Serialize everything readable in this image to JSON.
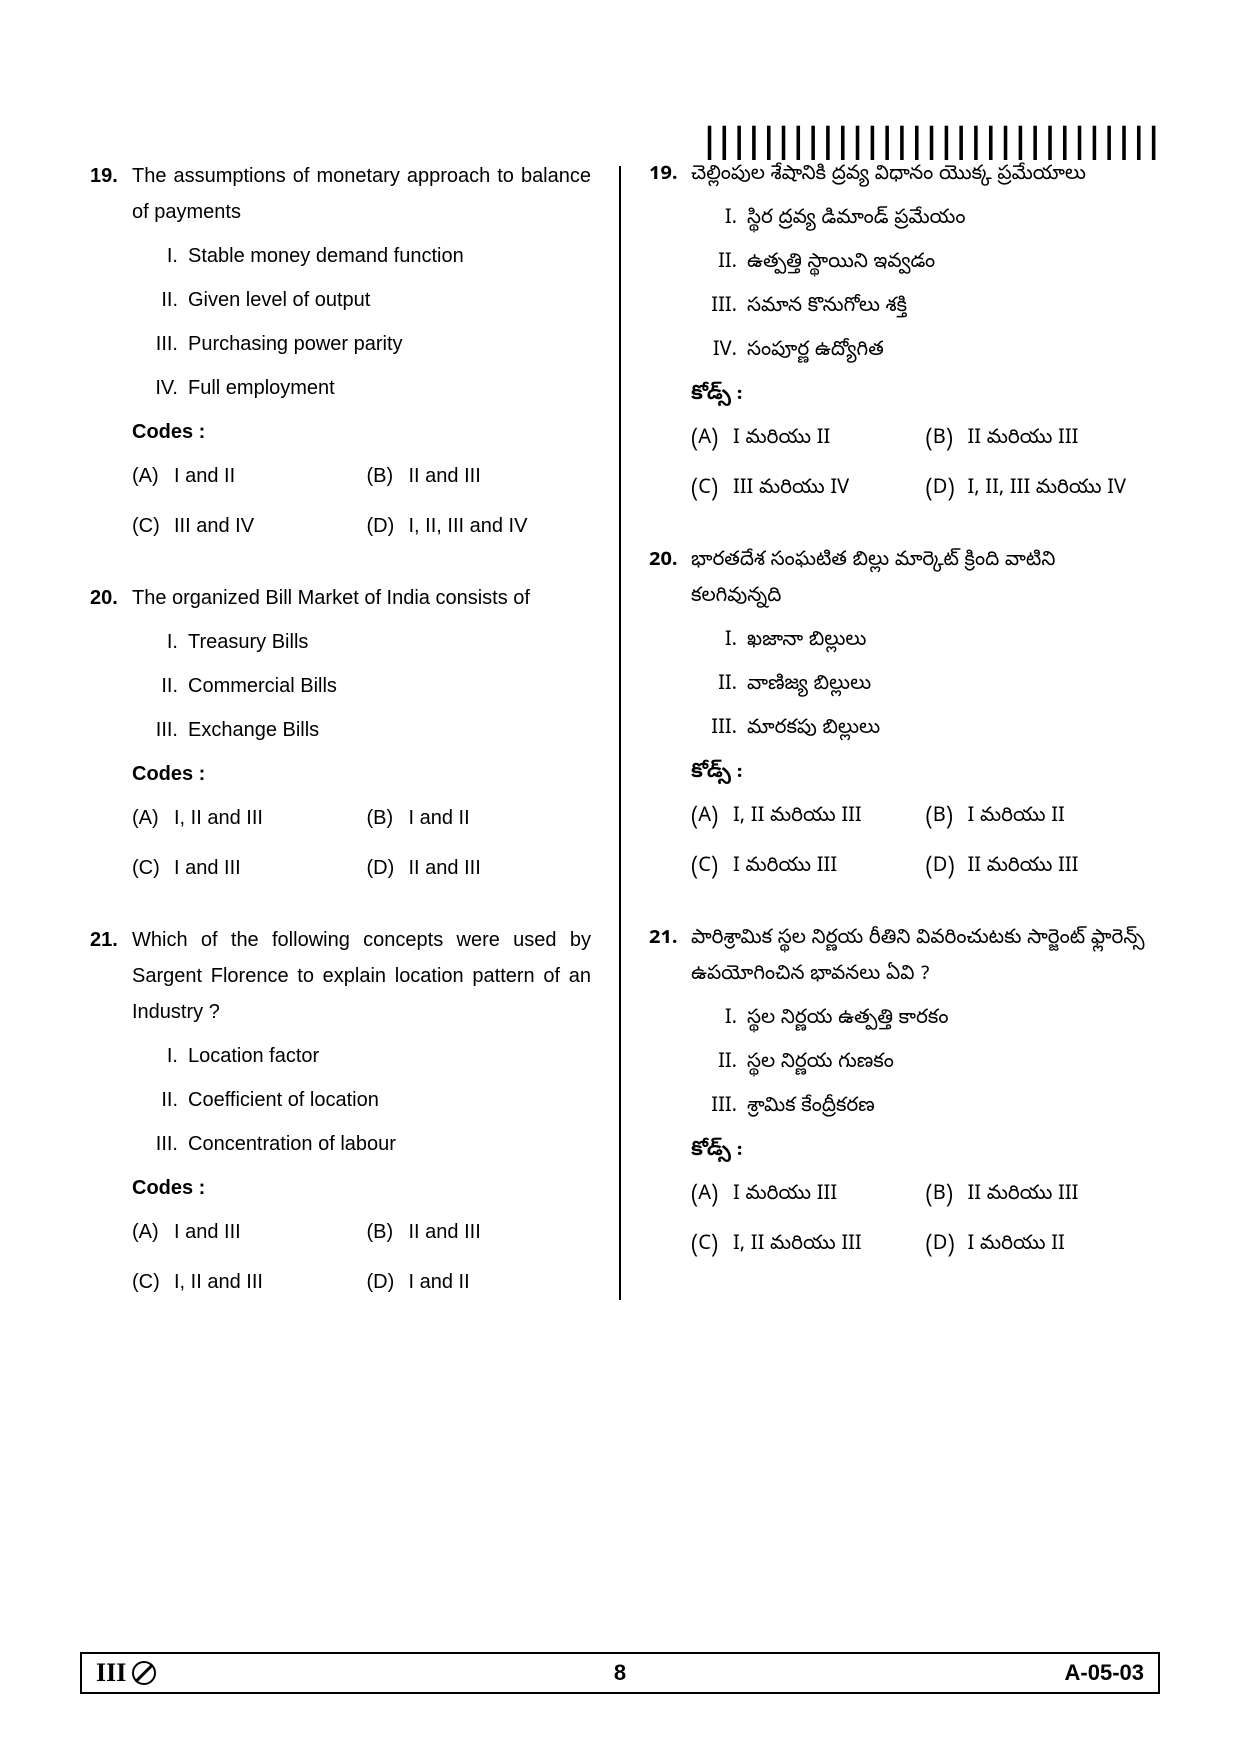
{
  "barcode_text": "|||||||||||||||||||||||||||||||",
  "footer": {
    "left_roman": "III",
    "page_num": "8",
    "code": "A-05-03"
  },
  "left": {
    "q19": {
      "num": "19.",
      "stem": "The assumptions of monetary approach to balance of payments",
      "items": [
        {
          "n": "I.",
          "t": "Stable money demand function"
        },
        {
          "n": "II.",
          "t": "Given level of output"
        },
        {
          "n": "III.",
          "t": "Purchasing power parity"
        },
        {
          "n": "IV.",
          "t": "Full employment"
        }
      ],
      "codes": "Codes :",
      "opts": [
        {
          "l": "(A)",
          "t": "I and II"
        },
        {
          "l": "(B)",
          "t": "II and III"
        },
        {
          "l": "(C)",
          "t": "III and IV"
        },
        {
          "l": "(D)",
          "t": "I, II, III and IV"
        }
      ]
    },
    "q20": {
      "num": "20.",
      "stem": "The organized Bill Market of India consists of",
      "items": [
        {
          "n": "I.",
          "t": "Treasury Bills"
        },
        {
          "n": "II.",
          "t": "Commercial Bills"
        },
        {
          "n": "III.",
          "t": "Exchange  Bills"
        }
      ],
      "codes": "Codes :",
      "opts": [
        {
          "l": "(A)",
          "t": "I, II and III"
        },
        {
          "l": "(B)",
          "t": "I and II"
        },
        {
          "l": "(C)",
          "t": "I and III"
        },
        {
          "l": "(D)",
          "t": "II and III"
        }
      ]
    },
    "q21": {
      "num": "21.",
      "stem": "Which of the following concepts were used by Sargent Florence to explain location pattern of an Industry ?",
      "items": [
        {
          "n": "I.",
          "t": "Location factor"
        },
        {
          "n": "II.",
          "t": "Coefficient of location"
        },
        {
          "n": "III.",
          "t": "Concentration of labour"
        }
      ],
      "codes": "Codes :",
      "opts": [
        {
          "l": "(A)",
          "t": "I and III"
        },
        {
          "l": "(B)",
          "t": "II and III"
        },
        {
          "l": "(C)",
          "t": "I, II and III"
        },
        {
          "l": "(D)",
          "t": "I and II"
        }
      ]
    }
  },
  "right": {
    "q19": {
      "num": "19.",
      "stem": "చెల్లింపుల శేషానికి ద్రవ్య విధానం యొక్క ప్రమేయాలు",
      "items": [
        {
          "n": "I.",
          "t": "స్థిర ద్రవ్య డిమాండ్ ప్రమేయం"
        },
        {
          "n": "II.",
          "t": "ఉత్పత్తి స్థాయిని ఇవ్వడం"
        },
        {
          "n": "III.",
          "t": "సమాన కొనుగోలు శక్తి"
        },
        {
          "n": "IV.",
          "t": "సంపూర్ణ ఉద్యోగిత"
        }
      ],
      "codes": "కోడ్స్ :",
      "opts": [
        {
          "l": "(A)",
          "t": "I మరియు II"
        },
        {
          "l": "(B)",
          "t": "II మరియు III"
        },
        {
          "l": "(C)",
          "t": "III మరియు IV"
        },
        {
          "l": "(D)",
          "t": "I, II, III మరియు IV"
        }
      ]
    },
    "q20": {
      "num": "20.",
      "stem": "భారతదేశ సంఘటిత బిల్లు మార్కెట్ క్రింది వాటిని కలగివున్నది",
      "items": [
        {
          "n": "I.",
          "t": "ఖజానా బిల్లులు"
        },
        {
          "n": "II.",
          "t": "వాణిజ్య బిల్లులు"
        },
        {
          "n": "III.",
          "t": "మారకపు బిల్లులు"
        }
      ],
      "codes": "కోడ్స్ :",
      "opts": [
        {
          "l": "(A)",
          "t": "I, II మరియు III"
        },
        {
          "l": "(B)",
          "t": "I మరియు II"
        },
        {
          "l": "(C)",
          "t": "I మరియు III"
        },
        {
          "l": "(D)",
          "t": "II మరియు III"
        }
      ]
    },
    "q21": {
      "num": "21.",
      "stem": "పారిశ్రామిక స్థల నిర్ణయ రీతిని వివరించుటకు సార్జెంట్ ఫ్లారెన్స్ ఉపయోగించిన భావనలు ఏవి ?",
      "items": [
        {
          "n": "I.",
          "t": "స్థల నిర్ణయ ఉత్పత్తి కారకం"
        },
        {
          "n": "II.",
          "t": "స్థల నిర్ణయ గుణకం"
        },
        {
          "n": "III.",
          "t": "శ్రామిక కేంద్రీకరణ"
        }
      ],
      "codes": "కోడ్స్ :",
      "opts": [
        {
          "l": "(A)",
          "t": "I మరియు III"
        },
        {
          "l": "(B)",
          "t": "II మరియు III"
        },
        {
          "l": "(C)",
          "t": "I, II మరియు III"
        },
        {
          "l": "(D)",
          "t": "I మరియు II"
        }
      ]
    }
  }
}
